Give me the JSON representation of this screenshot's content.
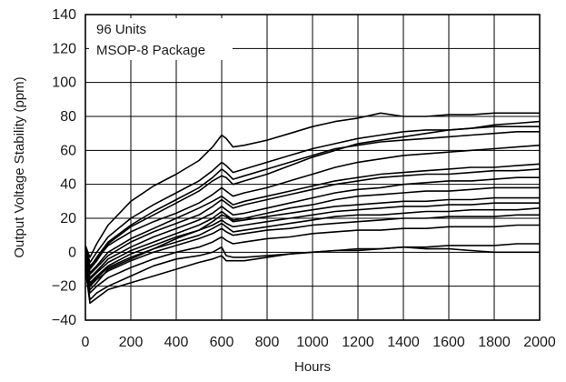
{
  "chart_data": {
    "type": "line",
    "xlabel": "Hours",
    "ylabel": "Output Voltage Stability (ppm)",
    "xlim": [
      0,
      2000
    ],
    "ylim": [
      -40,
      140
    ],
    "x_ticks": [
      0,
      200,
      400,
      600,
      800,
      1000,
      1200,
      1400,
      1600,
      1800,
      2000
    ],
    "y_ticks": [
      -40,
      -20,
      0,
      20,
      40,
      60,
      80,
      100,
      120,
      140
    ],
    "x_tick_labels": [
      "0",
      "200",
      "400",
      "600",
      "800",
      "1000",
      "1200",
      "1400",
      "1600",
      "1800",
      "2000"
    ],
    "y_tick_labels": [
      "−40",
      "−20",
      "0",
      "20",
      "40",
      "60",
      "80",
      "100",
      "120",
      "140"
    ],
    "grid": true,
    "annotations": [
      "96 Units",
      "MSOP-8 Package"
    ],
    "series_count": 96,
    "line_color": "#000000",
    "x": [
      0,
      20,
      50,
      100,
      200,
      300,
      400,
      500,
      560,
      600,
      620,
      650,
      700,
      800,
      900,
      1000,
      1100,
      1200,
      1300,
      1400,
      1500,
      1600,
      1700,
      1800,
      1900,
      2000
    ],
    "series": [
      {
        "values": [
          -5,
          -22,
          -18,
          -10,
          -4,
          2,
          8,
          13,
          18,
          22,
          21,
          18,
          19,
          21,
          23,
          25,
          27,
          28,
          29,
          30,
          30,
          31,
          31,
          32,
          32,
          32
        ]
      },
      {
        "values": [
          2,
          -10,
          -5,
          5,
          15,
          22,
          29,
          36,
          42,
          45,
          44,
          40,
          42,
          46,
          51,
          56,
          60,
          64,
          66,
          68,
          70,
          72,
          73,
          75,
          76,
          77
        ]
      },
      {
        "values": [
          4,
          -3,
          5,
          16,
          30,
          39,
          46,
          54,
          62,
          69,
          67,
          62,
          63,
          66,
          70,
          74,
          77,
          79,
          82,
          80,
          80,
          81,
          81,
          82,
          82,
          82
        ]
      },
      {
        "values": [
          -8,
          -28,
          -24,
          -20,
          -14,
          -8,
          -4,
          -2,
          0,
          3,
          -2,
          -3,
          -3,
          -2,
          -1,
          0,
          1,
          1,
          2,
          3,
          2,
          2,
          1,
          0,
          0,
          0
        ]
      },
      {
        "values": [
          -10,
          -30,
          -27,
          -22,
          -18,
          -14,
          -10,
          -6,
          -4,
          -2,
          -5,
          -5,
          -5,
          -3,
          -1,
          0,
          1,
          2,
          2,
          3,
          3,
          4,
          4,
          4,
          5,
          5
        ]
      },
      {
        "values": [
          0,
          -12,
          -8,
          0,
          8,
          14,
          20,
          26,
          30,
          33,
          31,
          28,
          30,
          33,
          36,
          39,
          42,
          44,
          46,
          47,
          48,
          49,
          50,
          50,
          51,
          52
        ]
      },
      {
        "values": [
          1,
          -8,
          -4,
          4,
          12,
          18,
          23,
          29,
          34,
          38,
          36,
          33,
          35,
          38,
          42,
          46,
          50,
          53,
          55,
          57,
          58,
          59,
          60,
          61,
          62,
          63
        ]
      },
      {
        "values": [
          -2,
          -15,
          -11,
          -4,
          3,
          9,
          14,
          19,
          23,
          27,
          25,
          22,
          23,
          26,
          29,
          32,
          35,
          37,
          38,
          40,
          41,
          42,
          42,
          43,
          44,
          44
        ]
      },
      {
        "values": [
          -4,
          -18,
          -14,
          -8,
          -1,
          4,
          9,
          13,
          16,
          19,
          17,
          15,
          16,
          18,
          20,
          22,
          24,
          25,
          26,
          27,
          27,
          28,
          28,
          29,
          29,
          29
        ]
      },
      {
        "values": [
          -6,
          -20,
          -16,
          -11,
          -5,
          0,
          4,
          8,
          11,
          14,
          12,
          10,
          11,
          13,
          14,
          16,
          17,
          18,
          19,
          20,
          20,
          21,
          21,
          21,
          22,
          22
        ]
      },
      {
        "values": [
          -7,
          -24,
          -20,
          -15,
          -9,
          -4,
          0,
          3,
          6,
          9,
          7,
          5,
          6,
          8,
          9,
          11,
          12,
          13,
          13,
          14,
          14,
          15,
          15,
          15,
          16,
          16
        ]
      },
      {
        "values": [
          3,
          -6,
          0,
          9,
          20,
          28,
          35,
          42,
          48,
          53,
          51,
          47,
          49,
          53,
          57,
          61,
          64,
          67,
          69,
          71,
          72,
          72,
          73,
          74,
          74,
          74
        ]
      },
      {
        "values": [
          -1,
          -13,
          -9,
          -2,
          6,
          12,
          17,
          22,
          27,
          31,
          29,
          26,
          28,
          31,
          34,
          37,
          40,
          42,
          44,
          45,
          46,
          46,
          47,
          48,
          48,
          49
        ]
      },
      {
        "values": [
          -3,
          -16,
          -12,
          -6,
          1,
          6,
          11,
          16,
          20,
          24,
          22,
          19,
          20,
          23,
          26,
          28,
          31,
          33,
          34,
          35,
          36,
          36,
          37,
          38,
          38,
          38
        ]
      },
      {
        "values": [
          -5,
          -19,
          -15,
          -9,
          -3,
          2,
          6,
          10,
          14,
          17,
          15,
          12,
          13,
          15,
          17,
          19,
          21,
          22,
          22,
          23,
          24,
          24,
          25,
          25,
          25,
          26
        ]
      },
      {
        "values": [
          2,
          -9,
          -3,
          6,
          16,
          24,
          31,
          38,
          44,
          49,
          47,
          43,
          45,
          49,
          53,
          57,
          61,
          63,
          65,
          66,
          67,
          68,
          69,
          70,
          71,
          71
        ]
      }
    ]
  }
}
